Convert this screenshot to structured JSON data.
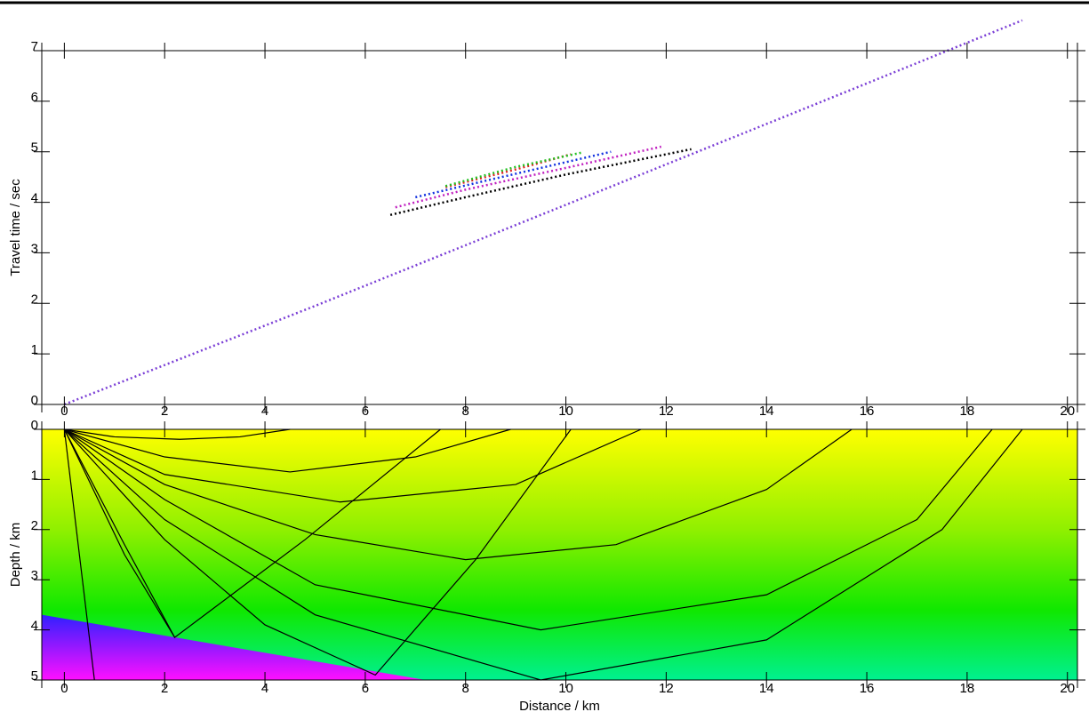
{
  "chart_data": [
    {
      "type": "line",
      "line_style": "dotted",
      "y_label": "Travel time / sec",
      "xlim": [
        -0.45,
        20.2
      ],
      "xticks": [
        0,
        2,
        4,
        6,
        8,
        10,
        12,
        14,
        16,
        18,
        20
      ],
      "ylim": [
        0,
        7
      ],
      "yticks": [
        0,
        1,
        2,
        3,
        4,
        5,
        6,
        7
      ],
      "series": [
        {
          "color": "#7b3fd6",
          "x": [
            0,
            5,
            10,
            15,
            19.1
          ],
          "values": [
            0,
            1.95,
            3.95,
            5.95,
            7.6
          ]
        },
        {
          "color": "#000000",
          "x": [
            6.5,
            8,
            10,
            12.5
          ],
          "values": [
            3.75,
            4.1,
            4.55,
            5.05
          ]
        },
        {
          "color": "#c020c0",
          "x": [
            6.6,
            8,
            10,
            11.9
          ],
          "values": [
            3.9,
            4.25,
            4.68,
            5.1
          ]
        },
        {
          "color": "#1030e0",
          "x": [
            7,
            8.5,
            10.9
          ],
          "values": [
            4.1,
            4.45,
            5.0
          ]
        },
        {
          "color": "#e02020",
          "x": [
            7.6,
            9,
            10.1
          ],
          "values": [
            4.3,
            4.65,
            4.95
          ]
        },
        {
          "color": "#20c020",
          "x": [
            7.6,
            9,
            10.3
          ],
          "values": [
            4.32,
            4.7,
            4.98
          ]
        }
      ]
    },
    {
      "type": "line",
      "line_style": "solid",
      "x_label": "Distance / km",
      "y_label": "Depth / km",
      "xlim": [
        -0.45,
        20.2
      ],
      "xticks": [
        0,
        2,
        4,
        6,
        8,
        10,
        12,
        14,
        16,
        18,
        20
      ],
      "ylim": [
        0,
        5
      ],
      "yticks": [
        0,
        1,
        2,
        3,
        4,
        5
      ],
      "interface": {
        "x": [
          -0.45,
          2.2,
          7.2
        ],
        "values": [
          3.7,
          4.15,
          5
        ]
      },
      "series": [
        {
          "color": "#000000",
          "x": [
            0,
            1,
            2.3,
            3.5,
            4.5
          ],
          "values": [
            0,
            0.15,
            0.2,
            0.15,
            0
          ]
        },
        {
          "color": "#000000",
          "x": [
            0,
            2,
            4.5,
            7,
            8.9
          ],
          "values": [
            0,
            0.55,
            0.85,
            0.55,
            0
          ]
        },
        {
          "color": "#000000",
          "x": [
            0,
            2,
            5.5,
            9,
            11.5
          ],
          "values": [
            0,
            0.9,
            1.45,
            1.1,
            0
          ]
        },
        {
          "color": "#000000",
          "x": [
            0,
            2,
            5,
            8,
            11,
            14,
            15.7
          ],
          "values": [
            0,
            1.1,
            2.1,
            2.6,
            2.3,
            1.2,
            0
          ]
        },
        {
          "color": "#000000",
          "x": [
            0,
            2,
            5,
            9.5,
            14,
            17,
            18.5
          ],
          "values": [
            0,
            1.4,
            3.1,
            4.0,
            3.3,
            1.8,
            0
          ]
        },
        {
          "color": "#000000",
          "x": [
            0,
            2,
            5,
            9.5,
            14,
            17.5,
            19.1
          ],
          "values": [
            0,
            1.8,
            3.7,
            5.0,
            4.2,
            2.0,
            0
          ]
        },
        {
          "color": "#000000",
          "x": [
            0,
            0.6
          ],
          "values": [
            0,
            5
          ]
        },
        {
          "color": "#000000",
          "x": [
            0,
            1.2,
            2.2
          ],
          "values": [
            0,
            2.5,
            4.15
          ]
        },
        {
          "color": "#000000",
          "x": [
            0,
            1.2,
            2.2,
            4.8,
            7.5
          ],
          "values": [
            0,
            2.3,
            4.15,
            2.2,
            0
          ]
        },
        {
          "color": "#000000",
          "x": [
            0,
            2,
            4,
            6.2,
            8.2,
            10.1
          ],
          "values": [
            0,
            2.2,
            3.9,
            4.9,
            2.6,
            0
          ]
        }
      ]
    }
  ]
}
